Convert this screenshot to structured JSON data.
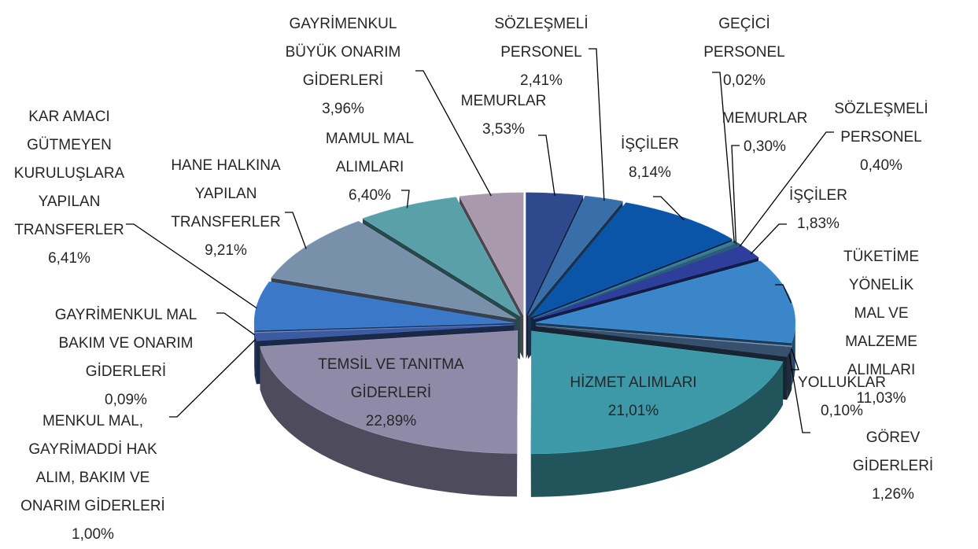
{
  "chart_data": {
    "type": "pie",
    "categories": [
      "MEMURLAR",
      "SÖZLEŞMELİ\nPERSONEL",
      "İŞÇİLER",
      "GEÇİCİ\nPERSONEL",
      "MEMURLAR",
      "SÖZLEŞMELİ\nPERSONEL",
      "İŞÇİLER",
      "TÜKETİME YÖNELİK\nMAL VE MALZEME\nALIMLARI",
      "YOLLUKLAR",
      "GÖREV GİDERLERİ",
      "HİZMET ALIMLARI",
      "TEMSİL VE TANITMA\nGİDERLERİ",
      "MENKUL MAL,\nGAYRİMADDİ HAK\nALIM, BAKIM VE\nONARIM GİDERLERİ",
      "GAYRİMENKUL MAL\nBAKIM VE ONARIM\nGİDERLERİ",
      "KAR AMACI\nGÜTMEYEN\nKURULUŞLARA\nYAPILAN\nTRANSFERLER",
      "HANE HALKINA\nYAPILAN\nTRANSFERLER",
      "MAMUL MAL\nALIMLARI",
      "GAYRİMENKUL\nBÜYÜK ONARIM\nGİDERLERİ"
    ],
    "values": [
      3.53,
      2.41,
      8.14,
      0.02,
      0.3,
      0.4,
      1.83,
      11.03,
      0.1,
      1.26,
      21.01,
      22.89,
      1.0,
      0.09,
      6.41,
      9.21,
      6.4,
      3.96
    ],
    "value_labels": [
      "3,53%",
      "2,41%",
      "8,14%",
      "0,02%",
      "0,30%",
      "0,40%",
      "1,83%",
      "11,03%",
      "0,10%",
      "1,26%",
      "21,01%",
      "22,89%",
      "1,00%",
      "0,09%",
      "6,41%",
      "9,21%",
      "6,40%",
      "3,96%"
    ],
    "colors": [
      "#2e4a8c",
      "#3a6ea8",
      "#0b55a8",
      "#4a7a90",
      "#3a7a8c",
      "#2b5a7a",
      "#2d3f9a",
      "#3a86c8",
      "#7a8aa0",
      "#37506e",
      "#3d98a8",
      "#8e8aa8",
      "#3c5aa0",
      "#6a7ab0",
      "#3b78c8",
      "#7890aa",
      "#5aa0a8",
      "#a89aac"
    ]
  }
}
